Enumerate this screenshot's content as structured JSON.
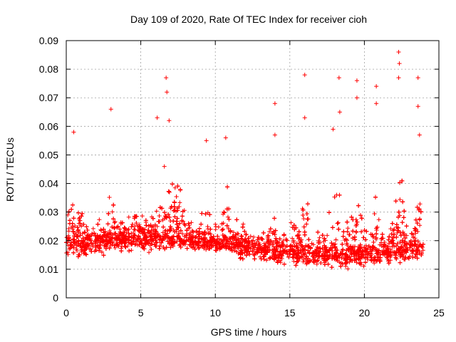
{
  "chart_data": {
    "type": "scatter",
    "title": "Day 109 of 2020, Rate Of TEC Index for receiver cioh",
    "xlabel": "GPS time / hours",
    "ylabel": "ROTI / TECUs",
    "xlim": [
      0,
      25
    ],
    "ylim": [
      0,
      0.09
    ],
    "x_ticks": [
      0,
      5,
      10,
      15,
      20,
      25
    ],
    "x_tick_labels": [
      "0",
      "5",
      "10",
      "15",
      "20",
      "25"
    ],
    "y_ticks": [
      0,
      0.01,
      0.02,
      0.03,
      0.04,
      0.05,
      0.06,
      0.07,
      0.08,
      0.09
    ],
    "y_tick_labels": [
      "0",
      "0.01",
      "0.02",
      "0.03",
      "0.04",
      "0.05",
      "0.06",
      "0.07",
      "0.08",
      "0.09"
    ],
    "grid": true,
    "marker": "plus",
    "color": "#ff0000",
    "series": [
      {
        "name": "ROTI",
        "x_range": [
          0,
          23.95
        ],
        "typical_range": [
          0.008,
          0.03
        ],
        "notable_points": [
          {
            "x": 0.5,
            "y": 0.058
          },
          {
            "x": 3.0,
            "y": 0.066
          },
          {
            "x": 6.1,
            "y": 0.063
          },
          {
            "x": 6.7,
            "y": 0.077
          },
          {
            "x": 6.75,
            "y": 0.072
          },
          {
            "x": 6.9,
            "y": 0.062
          },
          {
            "x": 9.4,
            "y": 0.055
          },
          {
            "x": 10.7,
            "y": 0.056
          },
          {
            "x": 14.0,
            "y": 0.068
          },
          {
            "x": 14.0,
            "y": 0.057
          },
          {
            "x": 16.0,
            "y": 0.078
          },
          {
            "x": 16.0,
            "y": 0.063
          },
          {
            "x": 17.9,
            "y": 0.059
          },
          {
            "x": 18.3,
            "y": 0.077
          },
          {
            "x": 18.35,
            "y": 0.065
          },
          {
            "x": 19.5,
            "y": 0.076
          },
          {
            "x": 19.5,
            "y": 0.07
          },
          {
            "x": 20.8,
            "y": 0.074
          },
          {
            "x": 20.8,
            "y": 0.068
          },
          {
            "x": 22.3,
            "y": 0.086
          },
          {
            "x": 22.35,
            "y": 0.082
          },
          {
            "x": 22.3,
            "y": 0.077
          },
          {
            "x": 23.6,
            "y": 0.077
          },
          {
            "x": 23.6,
            "y": 0.067
          },
          {
            "x": 23.7,
            "y": 0.057
          }
        ]
      }
    ]
  }
}
